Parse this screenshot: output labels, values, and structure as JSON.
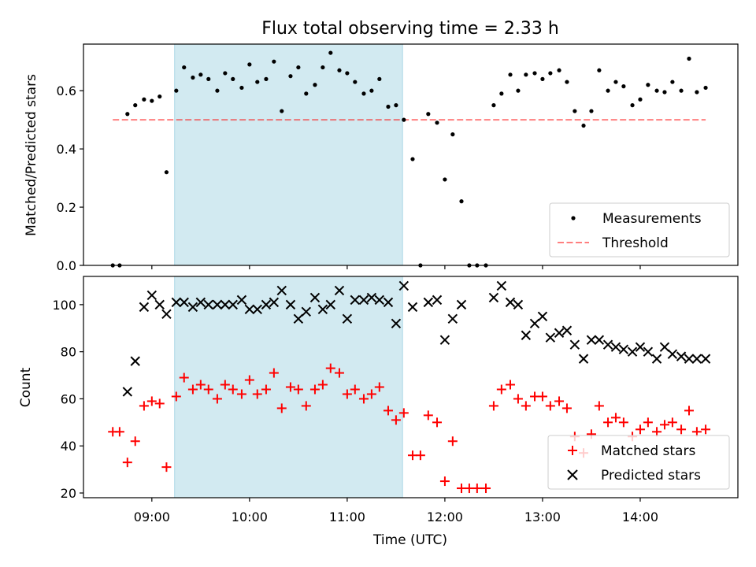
{
  "chart_data": [
    {
      "type": "scatter",
      "title": "Flux total observing time = 2.33 h",
      "xlabel": "",
      "ylabel": "Matched/Predicted stars",
      "xlim": [
        8.3,
        15.0
      ],
      "ylim": [
        0.0,
        0.76
      ],
      "yticks": [
        "0.0",
        "0.2",
        "0.4",
        "0.6"
      ],
      "highlight_span": [
        9.233,
        11.567
      ],
      "highlight_color": "#add8e6",
      "threshold": {
        "name": "Threshold",
        "value": 0.5,
        "x_range": [
          8.6,
          14.67
        ],
        "color": "#ff0000",
        "style": "dashed"
      },
      "series": [
        {
          "name": "Measurements",
          "marker": "dot",
          "color": "#000000",
          "points": [
            [
              8.6,
              0.0
            ],
            [
              8.67,
              0.0
            ],
            [
              8.75,
              0.52
            ],
            [
              8.83,
              0.55
            ],
            [
              8.92,
              0.57
            ],
            [
              9.0,
              0.565
            ],
            [
              9.08,
              0.58
            ],
            [
              9.15,
              0.32
            ],
            [
              9.25,
              0.6
            ],
            [
              9.33,
              0.68
            ],
            [
              9.42,
              0.645
            ],
            [
              9.5,
              0.655
            ],
            [
              9.58,
              0.64
            ],
            [
              9.67,
              0.6
            ],
            [
              9.75,
              0.66
            ],
            [
              9.83,
              0.64
            ],
            [
              9.92,
              0.61
            ],
            [
              10.0,
              0.69
            ],
            [
              10.08,
              0.63
            ],
            [
              10.17,
              0.64
            ],
            [
              10.25,
              0.7
            ],
            [
              10.33,
              0.53
            ],
            [
              10.42,
              0.65
            ],
            [
              10.5,
              0.68
            ],
            [
              10.58,
              0.59
            ],
            [
              10.67,
              0.62
            ],
            [
              10.75,
              0.68
            ],
            [
              10.83,
              0.73
            ],
            [
              10.92,
              0.67
            ],
            [
              11.0,
              0.66
            ],
            [
              11.08,
              0.63
            ],
            [
              11.17,
              0.59
            ],
            [
              11.25,
              0.6
            ],
            [
              11.33,
              0.64
            ],
            [
              11.42,
              0.545
            ],
            [
              11.5,
              0.55
            ],
            [
              11.58,
              0.5
            ],
            [
              11.67,
              0.365
            ],
            [
              11.75,
              0.0
            ],
            [
              11.83,
              0.52
            ],
            [
              11.92,
              0.49
            ],
            [
              12.0,
              0.295
            ],
            [
              12.08,
              0.45
            ],
            [
              12.17,
              0.22
            ],
            [
              12.25,
              0.0
            ],
            [
              12.33,
              0.0
            ],
            [
              12.42,
              0.0
            ],
            [
              12.5,
              0.55
            ],
            [
              12.58,
              0.59
            ],
            [
              12.67,
              0.655
            ],
            [
              12.75,
              0.6
            ],
            [
              12.83,
              0.655
            ],
            [
              12.92,
              0.66
            ],
            [
              13.0,
              0.64
            ],
            [
              13.08,
              0.66
            ],
            [
              13.17,
              0.67
            ],
            [
              13.25,
              0.63
            ],
            [
              13.33,
              0.53
            ],
            [
              13.42,
              0.48
            ],
            [
              13.5,
              0.53
            ],
            [
              13.58,
              0.67
            ],
            [
              13.67,
              0.6
            ],
            [
              13.75,
              0.63
            ],
            [
              13.83,
              0.615
            ],
            [
              13.92,
              0.55
            ],
            [
              14.0,
              0.57
            ],
            [
              14.08,
              0.62
            ],
            [
              14.17,
              0.6
            ],
            [
              14.25,
              0.595
            ],
            [
              14.33,
              0.63
            ],
            [
              14.42,
              0.6
            ],
            [
              14.5,
              0.71
            ],
            [
              14.58,
              0.595
            ],
            [
              14.67,
              0.61
            ]
          ]
        }
      ],
      "legend": {
        "placement": "lower-right",
        "entries": [
          "Measurements",
          "Threshold"
        ]
      }
    },
    {
      "type": "scatter",
      "title": "",
      "xlabel": "Time (UTC)",
      "ylabel": "Count",
      "xlim": [
        8.3,
        15.0
      ],
      "ylim": [
        18,
        112
      ],
      "yticks": [
        "20",
        "40",
        "60",
        "80",
        "100"
      ],
      "xticks": [
        {
          "value": 9,
          "label": "09:00"
        },
        {
          "value": 10,
          "label": "10:00"
        },
        {
          "value": 11,
          "label": "11:00"
        },
        {
          "value": 12,
          "label": "12:00"
        },
        {
          "value": 13,
          "label": "13:00"
        },
        {
          "value": 14,
          "label": "14:00"
        }
      ],
      "highlight_span": [
        9.233,
        11.567
      ],
      "highlight_color": "#add8e6",
      "series": [
        {
          "name": "Matched stars",
          "marker": "plus",
          "color": "#ff0000",
          "points": [
            [
              8.6,
              46
            ],
            [
              8.67,
              46
            ],
            [
              8.75,
              33
            ],
            [
              8.83,
              42
            ],
            [
              8.92,
              57
            ],
            [
              9.0,
              59
            ],
            [
              9.08,
              58
            ],
            [
              9.15,
              31
            ],
            [
              9.25,
              61
            ],
            [
              9.33,
              69
            ],
            [
              9.42,
              64
            ],
            [
              9.5,
              66
            ],
            [
              9.58,
              64
            ],
            [
              9.67,
              60
            ],
            [
              9.75,
              66
            ],
            [
              9.83,
              64
            ],
            [
              9.92,
              62
            ],
            [
              10.0,
              68
            ],
            [
              10.08,
              62
            ],
            [
              10.17,
              64
            ],
            [
              10.25,
              71
            ],
            [
              10.33,
              56
            ],
            [
              10.42,
              65
            ],
            [
              10.5,
              64
            ],
            [
              10.58,
              57
            ],
            [
              10.67,
              64
            ],
            [
              10.75,
              66
            ],
            [
              10.83,
              73
            ],
            [
              10.92,
              71
            ],
            [
              11.0,
              62
            ],
            [
              11.08,
              64
            ],
            [
              11.17,
              60
            ],
            [
              11.25,
              62
            ],
            [
              11.33,
              65
            ],
            [
              11.42,
              55
            ],
            [
              11.5,
              51
            ],
            [
              11.58,
              54
            ],
            [
              11.67,
              36
            ],
            [
              11.75,
              36
            ],
            [
              11.83,
              53
            ],
            [
              11.92,
              50
            ],
            [
              12.0,
              25
            ],
            [
              12.08,
              42
            ],
            [
              12.17,
              22
            ],
            [
              12.25,
              22
            ],
            [
              12.33,
              22
            ],
            [
              12.42,
              22
            ],
            [
              12.5,
              57
            ],
            [
              12.58,
              64
            ],
            [
              12.67,
              66
            ],
            [
              12.75,
              60
            ],
            [
              12.83,
              57
            ],
            [
              12.92,
              61
            ],
            [
              13.0,
              61
            ],
            [
              13.08,
              57
            ],
            [
              13.17,
              59
            ],
            [
              13.25,
              56
            ],
            [
              13.33,
              44
            ],
            [
              13.42,
              37
            ],
            [
              13.5,
              45
            ],
            [
              13.58,
              57
            ],
            [
              13.67,
              50
            ],
            [
              13.75,
              52
            ],
            [
              13.83,
              50
            ],
            [
              13.92,
              44
            ],
            [
              14.0,
              47
            ],
            [
              14.08,
              50
            ],
            [
              14.17,
              46
            ],
            [
              14.25,
              49
            ],
            [
              14.33,
              50
            ],
            [
              14.42,
              47
            ],
            [
              14.5,
              55
            ],
            [
              14.58,
              46
            ],
            [
              14.67,
              47
            ]
          ]
        },
        {
          "name": "Predicted stars",
          "marker": "x",
          "color": "#000000",
          "points": [
            [
              8.75,
              63
            ],
            [
              8.83,
              76
            ],
            [
              8.92,
              99
            ],
            [
              9.0,
              104
            ],
            [
              9.08,
              100
            ],
            [
              9.15,
              96
            ],
            [
              9.25,
              101
            ],
            [
              9.33,
              101
            ],
            [
              9.42,
              99
            ],
            [
              9.5,
              101
            ],
            [
              9.58,
              100
            ],
            [
              9.67,
              100
            ],
            [
              9.75,
              100
            ],
            [
              9.83,
              100
            ],
            [
              9.92,
              102
            ],
            [
              10.0,
              98
            ],
            [
              10.08,
              98
            ],
            [
              10.17,
              100
            ],
            [
              10.25,
              101
            ],
            [
              10.33,
              106
            ],
            [
              10.42,
              100
            ],
            [
              10.5,
              94
            ],
            [
              10.58,
              97
            ],
            [
              10.67,
              103
            ],
            [
              10.75,
              98
            ],
            [
              10.83,
              100
            ],
            [
              10.92,
              106
            ],
            [
              11.0,
              94
            ],
            [
              11.08,
              102
            ],
            [
              11.17,
              102
            ],
            [
              11.25,
              103
            ],
            [
              11.33,
              102
            ],
            [
              11.42,
              101
            ],
            [
              11.5,
              92
            ],
            [
              11.58,
              108
            ],
            [
              11.67,
              99
            ],
            [
              11.83,
              101
            ],
            [
              11.92,
              102
            ],
            [
              12.0,
              85
            ],
            [
              12.08,
              94
            ],
            [
              12.17,
              100
            ],
            [
              12.5,
              103
            ],
            [
              12.58,
              108
            ],
            [
              12.67,
              101
            ],
            [
              12.75,
              100
            ],
            [
              12.83,
              87
            ],
            [
              12.92,
              92
            ],
            [
              13.0,
              95
            ],
            [
              13.08,
              86
            ],
            [
              13.17,
              88
            ],
            [
              13.25,
              89
            ],
            [
              13.33,
              83
            ],
            [
              13.42,
              77
            ],
            [
              13.5,
              85
            ],
            [
              13.58,
              85
            ],
            [
              13.67,
              83
            ],
            [
              13.75,
              82
            ],
            [
              13.83,
              81
            ],
            [
              13.92,
              80
            ],
            [
              14.0,
              82
            ],
            [
              14.08,
              80
            ],
            [
              14.17,
              77
            ],
            [
              14.25,
              82
            ],
            [
              14.33,
              79
            ],
            [
              14.42,
              78
            ],
            [
              14.5,
              77
            ],
            [
              14.58,
              77
            ],
            [
              14.67,
              77
            ]
          ]
        }
      ],
      "legend": {
        "placement": "lower-right",
        "entries": [
          "Matched stars",
          "Predicted stars"
        ]
      }
    }
  ]
}
